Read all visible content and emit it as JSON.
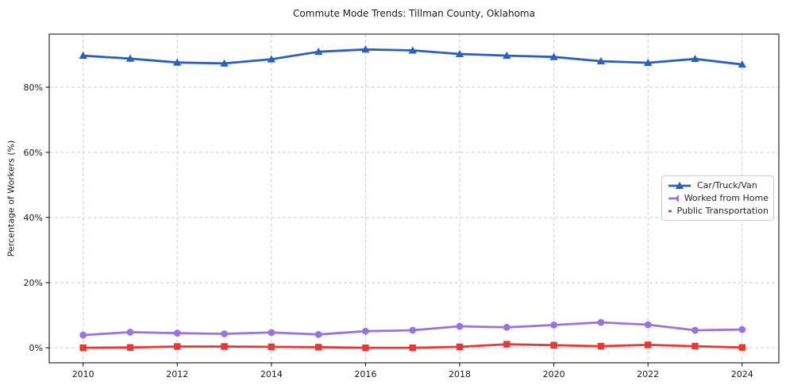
{
  "figure": {
    "title": "Commute Mode Trends: Tillman County, Oklahoma"
  },
  "chart_data": {
    "type": "line",
    "title": "Commute Mode Trends: Tillman County, Oklahoma",
    "xlabel": "",
    "ylabel": "Percentage of Workers (%)",
    "x": [
      2010,
      2011,
      2012,
      2013,
      2014,
      2015,
      2016,
      2017,
      2018,
      2019,
      2020,
      2021,
      2022,
      2023,
      2024
    ],
    "series": [
      {
        "name": "Car/Truck/Van",
        "color": "#2a5fbf",
        "marker": "triangle",
        "values": [
          89.7,
          88.8,
          87.6,
          87.3,
          88.6,
          90.9,
          91.6,
          91.3,
          90.2,
          89.7,
          89.3,
          88.0,
          87.5,
          88.7,
          87.0
        ]
      },
      {
        "name": "Worked from Home",
        "color": "#9c73dc",
        "marker": "circle",
        "values": [
          3.9,
          4.8,
          4.5,
          4.3,
          4.7,
          4.1,
          5.1,
          5.4,
          6.6,
          6.3,
          7.0,
          7.8,
          7.1,
          5.4,
          5.6
        ]
      },
      {
        "name": "Public Transportation",
        "color": "#e53935",
        "marker": "square",
        "values": [
          0.0,
          0.1,
          0.4,
          0.4,
          0.3,
          0.2,
          0.0,
          0.0,
          0.3,
          1.1,
          0.8,
          0.5,
          0.9,
          0.5,
          0.1
        ]
      }
    ],
    "x_ticks": [
      2010,
      2012,
      2014,
      2016,
      2018,
      2020,
      2022,
      2024
    ],
    "y_ticks": [
      0,
      20,
      40,
      60,
      80
    ],
    "y_tick_suffix": "%",
    "xlim": [
      2009.28,
      2024.78
    ],
    "ylim": [
      -4.6,
      96.3
    ],
    "grid": true,
    "legend_position": "right-center",
    "colors": {
      "grid": "#cccccc",
      "spine": "#000000",
      "tick_text": "#1a1a1a"
    }
  }
}
